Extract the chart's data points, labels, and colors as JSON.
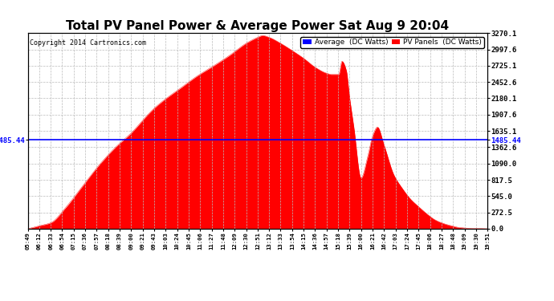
{
  "title": "Total PV Panel Power & Average Power Sat Aug 9 20:04",
  "copyright": "Copyright 2014 Cartronics.com",
  "avg_value": 1485.44,
  "y_max": 3270.1,
  "y_ticks": [
    0.0,
    272.5,
    545.0,
    817.5,
    1090.0,
    1362.6,
    1635.1,
    1907.6,
    2180.1,
    2452.6,
    2725.1,
    2997.6,
    3270.1
  ],
  "y_tick_labels": [
    "0.0",
    "272.5",
    "545.0",
    "817.5",
    "1090.0",
    "1362.6",
    "1635.1",
    "1907.6",
    "2180.1",
    "2452.6",
    "2725.1",
    "2997.6",
    "3270.1"
  ],
  "avg_right_label": "1485.44",
  "fill_color": "#FF0000",
  "line_color": "#FF0000",
  "avg_line_color": "#0000FF",
  "bg_color": "#FFFFFF",
  "grid_color": "#BBBBBB",
  "title_fontsize": 11,
  "legend_avg_bg": "#0000FF",
  "legend_pv_bg": "#FF0000",
  "x_labels": [
    "05:49",
    "06:12",
    "06:33",
    "06:54",
    "07:15",
    "07:36",
    "07:57",
    "08:18",
    "08:39",
    "09:00",
    "09:21",
    "09:43",
    "10:03",
    "10:24",
    "10:45",
    "11:06",
    "11:27",
    "11:48",
    "12:09",
    "12:30",
    "12:51",
    "13:12",
    "13:33",
    "13:54",
    "14:15",
    "14:36",
    "14:57",
    "15:18",
    "15:39",
    "16:00",
    "16:21",
    "16:42",
    "17:03",
    "17:24",
    "17:45",
    "18:06",
    "18:27",
    "18:48",
    "19:09",
    "19:30",
    "19:51"
  ],
  "curve_points_t": [
    5.817,
    6.2,
    6.55,
    7.0,
    7.5,
    8.0,
    8.5,
    9.0,
    9.5,
    10.0,
    10.5,
    11.0,
    11.5,
    12.0,
    12.5,
    12.85,
    13.0,
    13.2,
    13.55,
    13.9,
    14.25,
    14.6,
    14.95,
    15.1,
    15.32,
    15.42,
    15.55,
    15.65,
    15.78,
    16.0,
    16.2,
    16.35,
    16.5,
    16.7,
    17.0,
    17.25,
    17.5,
    17.75,
    18.0,
    18.25,
    18.5,
    18.75,
    19.0,
    19.25,
    19.5,
    19.65,
    19.85
  ],
  "curve_points_y": [
    0,
    50,
    100,
    350,
    700,
    1050,
    1350,
    1600,
    1900,
    2150,
    2350,
    2550,
    2720,
    2900,
    3100,
    3200,
    3230,
    3200,
    3100,
    2980,
    2850,
    2700,
    2600,
    2580,
    2580,
    2800,
    2650,
    2200,
    1700,
    850,
    1200,
    1550,
    1700,
    1400,
    900,
    680,
    500,
    370,
    250,
    150,
    90,
    50,
    20,
    10,
    5,
    2,
    0
  ]
}
